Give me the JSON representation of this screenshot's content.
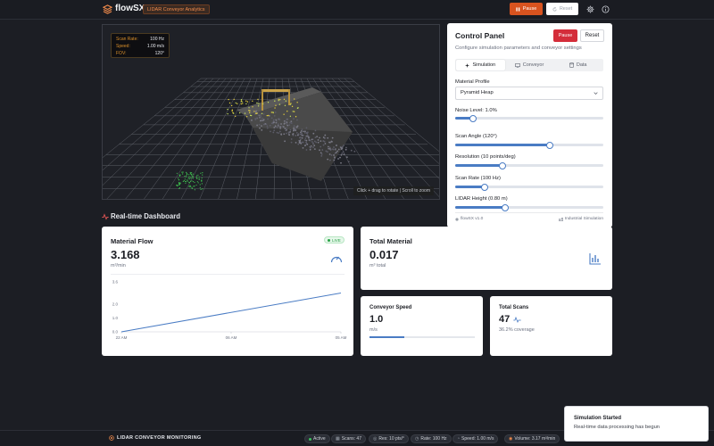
{
  "topbar": {
    "logo_text": "flowSX",
    "badge": "LIDAR Conveyor Analytics",
    "pause_label": "Pause",
    "reset_label": "Reset",
    "icons": [
      "layers-icon",
      "pause-icon",
      "refresh-icon",
      "gear-icon",
      "info-icon"
    ]
  },
  "viewport": {
    "overlay": [
      {
        "key": "Scan Rate:",
        "value": "100 Hz"
      },
      {
        "key": "Speed:",
        "value": "1.00 m/s"
      },
      {
        "key": "FOV:",
        "value": "120°"
      }
    ],
    "hint": "Click + drag to rotate | Scroll to zoom"
  },
  "panel": {
    "title": "Control Panel",
    "pause_label": "Pause",
    "reset_label": "Reset",
    "subtitle": "Configure simulation parameters and conveyor settings",
    "tabs": [
      {
        "label": "Simulation",
        "icon": "sparkle-icon",
        "active": true
      },
      {
        "label": "Conveyor",
        "icon": "monitor-icon",
        "active": false
      },
      {
        "label": "Data",
        "icon": "database-icon",
        "active": false
      }
    ],
    "material_label": "Material Profile",
    "material_value": "Pyramid Heap",
    "sliders": [
      {
        "label": "Noise Level: 1.0%",
        "fraction": 0.12
      },
      {
        "label": "Scan Angle (120°)",
        "fraction": 0.64
      },
      {
        "label": "Resolution (10 points/deg)",
        "fraction": 0.32
      },
      {
        "label": "Scan Rate (100 Hz)",
        "fraction": 0.2
      },
      {
        "label": "LIDAR Height (0.80 m)",
        "fraction": 0.34
      }
    ],
    "footer_left": "flowSX v1.0",
    "footer_right": "Industrial Simulation"
  },
  "dashboard": {
    "title": "Real-time Dashboard",
    "material_flow": {
      "title": "Material Flow",
      "live": "LIVE",
      "value": "3.168",
      "unit": "m³/min"
    },
    "total_material": {
      "title": "Total Material",
      "value": "0.017",
      "unit": "m³ total"
    },
    "conveyor_speed": {
      "title": "Conveyor Speed",
      "value": "1.0",
      "unit": "m/s",
      "fraction": 0.33
    },
    "total_scans": {
      "title": "Total Scans",
      "value": "47",
      "coverage": "36.2% coverage"
    }
  },
  "chart_data": {
    "type": "line",
    "title": "",
    "xlabel": "",
    "ylabel": "",
    "x_ticks": [
      "22 AM",
      "06 AM",
      "05 AM"
    ],
    "y_ticks": [
      "0.0",
      "1.0",
      "2.0",
      "3.6"
    ],
    "ylim": [
      0,
      3.6
    ],
    "grid": false,
    "series": [
      {
        "values": [
          0.0,
          2.8
        ],
        "x": [
          0,
          1
        ],
        "color": "#4a7cc4"
      }
    ]
  },
  "statusbar": {
    "title": "LIDAR CONVEYOR MONITORING",
    "chips": [
      "Active",
      "Scans: 47",
      "Res: 10 pts/°",
      "Rate: 100 Hz",
      "Speed: 1.00 m/s",
      "Volume: 3.17 m³/min"
    ]
  },
  "toast": {
    "title": "Simulation Started",
    "desc": "Real-time data processing has begun"
  }
}
